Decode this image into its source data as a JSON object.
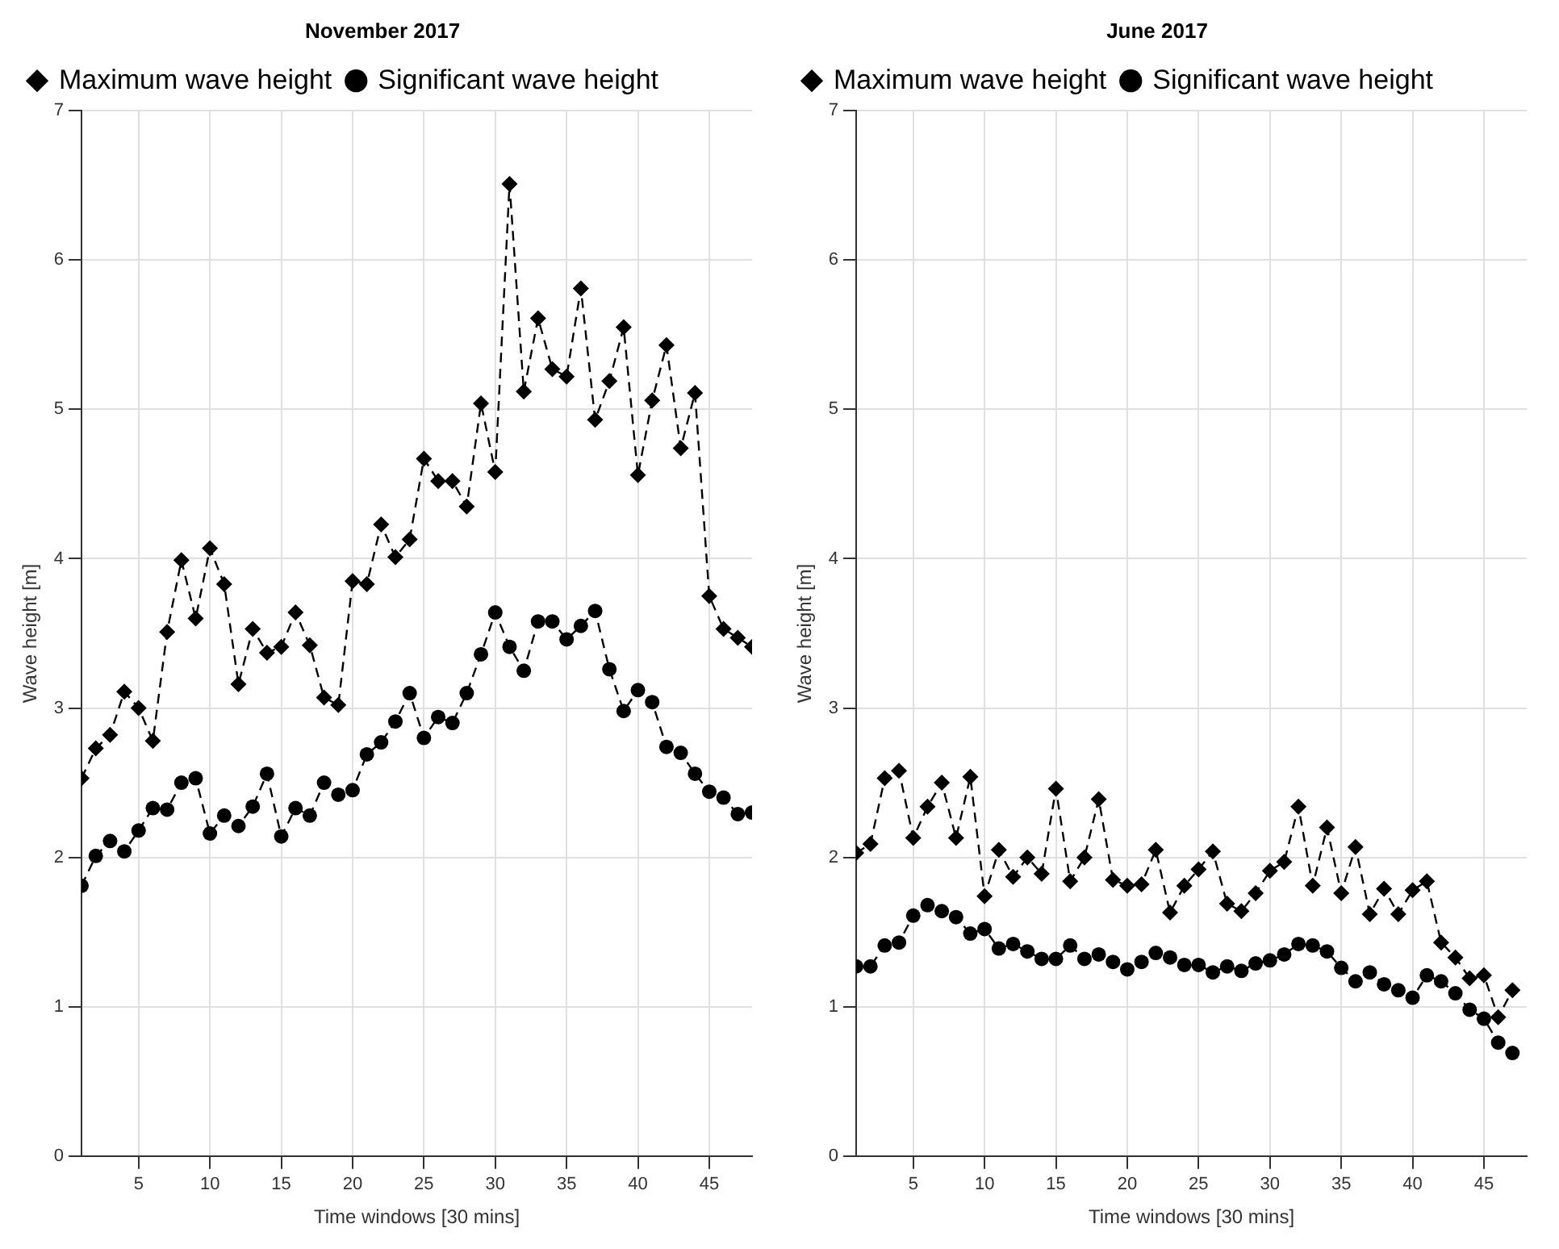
{
  "chart_data": [
    {
      "type": "line",
      "title": "November 2017",
      "xlabel": "Time windows [30 mins]",
      "ylabel": "Wave height [m]",
      "x": [
        1,
        2,
        3,
        4,
        5,
        6,
        7,
        8,
        9,
        10,
        11,
        12,
        13,
        14,
        15,
        16,
        17,
        18,
        19,
        20,
        21,
        22,
        23,
        24,
        25,
        26,
        27,
        28,
        29,
        30,
        31,
        32,
        33,
        34,
        35,
        36,
        37,
        38,
        39,
        40,
        41,
        42,
        43,
        44,
        45,
        46,
        47,
        48
      ],
      "series": [
        {
          "name": "Maximum wave height",
          "color": "#000000",
          "marker": "diamond",
          "line_style": "dashed",
          "values": [
            2.53,
            2.73,
            2.82,
            3.11,
            3.0,
            2.78,
            3.51,
            3.99,
            3.6,
            4.07,
            3.83,
            3.16,
            3.53,
            3.37,
            3.41,
            3.64,
            3.42,
            3.07,
            3.02,
            3.85,
            3.83,
            4.23,
            4.01,
            4.13,
            4.67,
            4.52,
            4.52,
            4.35,
            5.04,
            4.58,
            6.51,
            5.12,
            5.61,
            5.27,
            5.22,
            5.81,
            4.93,
            5.19,
            5.55,
            4.56,
            5.06,
            5.43,
            4.74,
            5.11,
            3.75,
            3.53,
            3.47,
            3.41
          ]
        },
        {
          "name": "Significant wave height",
          "color": "#000000",
          "marker": "circle",
          "line_style": "dashed",
          "values": [
            1.81,
            2.01,
            2.11,
            2.04,
            2.18,
            2.33,
            2.32,
            2.5,
            2.53,
            2.16,
            2.28,
            2.21,
            2.34,
            2.56,
            2.14,
            2.33,
            2.28,
            2.5,
            2.42,
            2.45,
            2.69,
            2.77,
            2.91,
            3.1,
            2.8,
            2.94,
            2.9,
            3.1,
            3.36,
            3.64,
            3.41,
            3.25,
            3.58,
            3.58,
            3.46,
            3.55,
            3.65,
            3.26,
            2.98,
            3.12,
            3.04,
            2.74,
            2.7,
            2.56,
            2.44,
            2.4,
            2.29,
            2.3
          ]
        }
      ],
      "xlim": [
        1,
        48
      ],
      "xticks": [
        5,
        10,
        15,
        20,
        25,
        30,
        35,
        40,
        45
      ],
      "ylim": [
        0,
        7
      ],
      "yticks": [
        0,
        1,
        2,
        3,
        4,
        5,
        6,
        7
      ],
      "grid": true,
      "legend": "top left"
    },
    {
      "type": "line",
      "title": "June 2017",
      "xlabel": "Time windows [30 mins]",
      "ylabel": "Wave height [m]",
      "x": [
        1,
        2,
        3,
        4,
        5,
        6,
        7,
        8,
        9,
        10,
        11,
        12,
        13,
        14,
        15,
        16,
        17,
        18,
        19,
        20,
        21,
        22,
        23,
        24,
        25,
        26,
        27,
        28,
        29,
        30,
        31,
        32,
        33,
        34,
        35,
        36,
        37,
        38,
        39,
        40,
        41,
        42,
        43,
        44,
        45,
        46,
        47
      ],
      "series": [
        {
          "name": "Maximum wave height",
          "color": "#000000",
          "marker": "diamond",
          "line_style": "dashed",
          "values": [
            2.03,
            2.09,
            2.53,
            2.58,
            2.13,
            2.34,
            2.5,
            2.13,
            2.54,
            1.74,
            2.05,
            1.87,
            2.0,
            1.89,
            2.46,
            1.84,
            2.0,
            2.39,
            1.85,
            1.81,
            1.82,
            2.05,
            1.63,
            1.81,
            1.92,
            2.04,
            1.69,
            1.64,
            1.76,
            1.91,
            1.97,
            2.34,
            1.81,
            2.2,
            1.76,
            2.07,
            1.62,
            1.79,
            1.62,
            1.78,
            1.84,
            1.43,
            1.33,
            1.19,
            1.21,
            0.93,
            1.11
          ]
        },
        {
          "name": "Significant wave height",
          "color": "#000000",
          "marker": "circle",
          "line_style": "dashed",
          "values": [
            1.27,
            1.27,
            1.41,
            1.43,
            1.61,
            1.68,
            1.64,
            1.6,
            1.49,
            1.52,
            1.39,
            1.42,
            1.37,
            1.32,
            1.32,
            1.41,
            1.32,
            1.35,
            1.3,
            1.25,
            1.3,
            1.36,
            1.33,
            1.28,
            1.28,
            1.23,
            1.27,
            1.24,
            1.29,
            1.31,
            1.35,
            1.42,
            1.41,
            1.37,
            1.26,
            1.17,
            1.23,
            1.15,
            1.11,
            1.06,
            1.21,
            1.17,
            1.09,
            0.98,
            0.92,
            0.76,
            0.69
          ]
        }
      ],
      "xlim": [
        1,
        48
      ],
      "xticks": [
        5,
        10,
        15,
        20,
        25,
        30,
        35,
        40,
        45
      ],
      "ylim": [
        0,
        7
      ],
      "yticks": [
        0,
        1,
        2,
        3,
        4,
        5,
        6,
        7
      ],
      "grid": true,
      "legend": "top left"
    }
  ]
}
